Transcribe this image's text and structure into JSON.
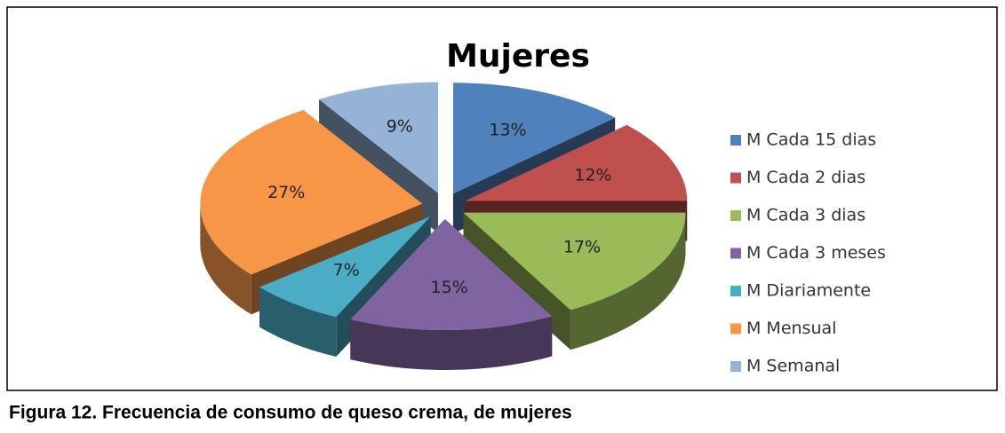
{
  "chart_data": {
    "type": "pie3d",
    "title": "Mujeres",
    "categories": [
      "M Cada 15 dias",
      "M Cada 2 dias",
      "M Cada 3 dias",
      "M Cada 3 meses",
      "M Diariamente",
      "M Mensual",
      "M Semanal"
    ],
    "values": [
      13,
      12,
      17,
      15,
      7,
      27,
      9
    ],
    "value_labels": [
      "13%",
      "12%",
      "17%",
      "15%",
      "7%",
      "27%",
      "9%"
    ],
    "colors": [
      "#4f81bd",
      "#c0504d",
      "#9bbb59",
      "#8064a2",
      "#4bacc6",
      "#f79646",
      "#95b3d7"
    ],
    "legend": "right"
  },
  "caption": "Figura 12. Frecuencia de consumo de queso crema, de mujeres"
}
